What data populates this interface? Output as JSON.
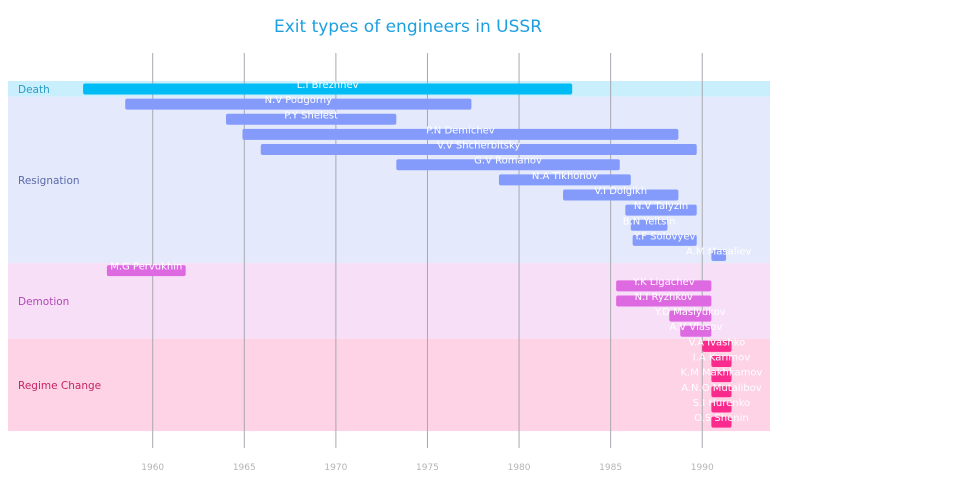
{
  "chart_data": {
    "type": "timeline",
    "title": "Exit types of engineers in USSR",
    "xlabel": "",
    "ylabel": "",
    "xlim": [
      1952.1,
      1993.7
    ],
    "xticks": [
      1960,
      1965,
      1970,
      1975,
      1980,
      1985,
      1990
    ],
    "grid": true,
    "categories": [
      {
        "name": "Death",
        "band_color": "#c9eefc",
        "bar_color": "#00bcf6",
        "label_color": "#2a9dc4"
      },
      {
        "name": "Resignation",
        "band_color": "#e4eafc",
        "bar_color": "#859bfb",
        "label_color": "#5a6aaa"
      },
      {
        "name": "Demotion",
        "band_color": "#f8dff8",
        "bar_color": "#de6ae2",
        "label_color": "#b048b4"
      },
      {
        "name": "Regime Change",
        "band_color": "#fdd3e5",
        "bar_color": "#fa2b8d",
        "label_color": "#c52566"
      }
    ],
    "tasks": [
      {
        "name": "L.I Brezhnev",
        "category": "Death",
        "start": 1956.2,
        "end": 1982.9
      },
      {
        "name": "N.V Podgorny",
        "category": "Resignation",
        "start": 1958.5,
        "end": 1977.4
      },
      {
        "name": "P.Y Shelest",
        "category": "Resignation",
        "start": 1964.0,
        "end": 1973.3
      },
      {
        "name": "P.N Demichev",
        "category": "Resignation",
        "start": 1964.9,
        "end": 1988.7
      },
      {
        "name": "V.V Shcherbitsky",
        "category": "Resignation",
        "start": 1965.9,
        "end": 1989.7
      },
      {
        "name": "G.V Romanov",
        "category": "Resignation",
        "start": 1973.3,
        "end": 1985.5
      },
      {
        "name": "N.A Tikhonov",
        "category": "Resignation",
        "start": 1978.9,
        "end": 1986.1
      },
      {
        "name": "V.I Dolgikh",
        "category": "Resignation",
        "start": 1982.4,
        "end": 1988.7
      },
      {
        "name": "N.V Talyzin",
        "category": "Resignation",
        "start": 1985.8,
        "end": 1989.7
      },
      {
        "name": "B.N Yeltsin",
        "category": "Resignation",
        "start": 1986.1,
        "end": 1988.1
      },
      {
        "name": "Y.F Solovyev",
        "category": "Resignation",
        "start": 1986.2,
        "end": 1989.7
      },
      {
        "name": "A.M Masaliev",
        "category": "Resignation",
        "start": 1990.5,
        "end": 1991.3
      },
      {
        "name": "M.G Pervukhin",
        "category": "Demotion",
        "start": 1957.5,
        "end": 1961.8
      },
      {
        "name": "Y.K Ligachev",
        "category": "Demotion",
        "start": 1985.3,
        "end": 1990.5
      },
      {
        "name": "N.I Ryzhkov",
        "category": "Demotion",
        "start": 1985.3,
        "end": 1990.5
      },
      {
        "name": "Y.D Maslyukov",
        "category": "Demotion",
        "start": 1988.2,
        "end": 1990.5
      },
      {
        "name": "A.V Vlasov",
        "category": "Demotion",
        "start": 1988.8,
        "end": 1990.5
      },
      {
        "name": "V.A Ivashko",
        "category": "Regime Change",
        "start": 1990.0,
        "end": 1991.6
      },
      {
        "name": "I.A Karimov",
        "category": "Regime Change",
        "start": 1990.5,
        "end": 1991.6
      },
      {
        "name": "K.M Makhkamov",
        "category": "Regime Change",
        "start": 1990.5,
        "end": 1991.6
      },
      {
        "name": "A.N.O Mutalibov",
        "category": "Regime Change",
        "start": 1990.5,
        "end": 1991.6
      },
      {
        "name": "S.I Hurenko",
        "category": "Regime Change",
        "start": 1990.5,
        "end": 1991.6
      },
      {
        "name": "O.S Shenin",
        "category": "Regime Change",
        "start": 1990.5,
        "end": 1991.6
      }
    ]
  }
}
